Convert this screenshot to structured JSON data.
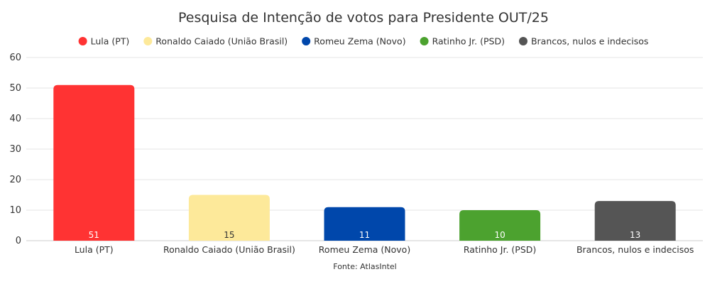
{
  "chart_data": {
    "type": "bar",
    "title": "Pesquisa de Intenção de votos para Presidente OUT/25",
    "categories": [
      "Lula (PT)",
      "Ronaldo Caiado (União Brasil)",
      "Romeu Zema (Novo)",
      "Ratinho Jr. (PSD)",
      "Brancos, nulos e indecisos"
    ],
    "values": [
      51,
      15,
      11,
      10,
      13
    ],
    "bar_labels": [
      "51",
      "15",
      "11",
      "10",
      "13"
    ],
    "colors": [
      "#ff3333",
      "#fde99a",
      "#0047ab",
      "#4ca22f",
      "#555555"
    ],
    "label_colors": [
      "#ffffff",
      "#333333",
      "#ffffff",
      "#ffffff",
      "#ffffff"
    ],
    "legend_entries": [
      "Lula (PT)",
      "Ronaldo Caiado (União Brasil)",
      "Romeu Zema (Novo)",
      "Ratinho Jr. (PSD)",
      "Brancos, nulos e indecisos"
    ],
    "legend_position": "top-center",
    "ylim": [
      0,
      60
    ],
    "y_ticks": [
      "0",
      "10",
      "20",
      "30",
      "40",
      "50",
      "60"
    ],
    "grid": true,
    "xlabel": "",
    "ylabel": "",
    "source": "Fonte: AtlasIntel"
  }
}
